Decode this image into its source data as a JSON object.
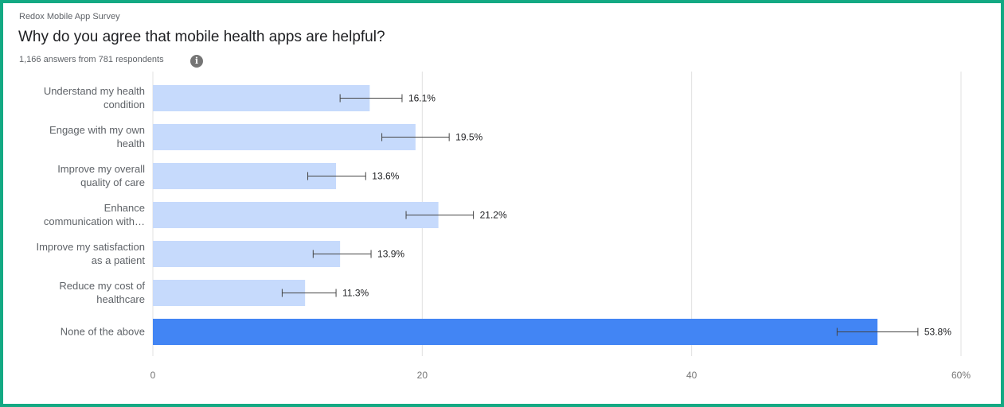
{
  "header": {
    "survey_name": "Redox Mobile App Survey",
    "question": "Why do you agree that mobile health apps are helpful?",
    "response_count": "1,166 answers from 781 respondents",
    "info_icon": "info-icon"
  },
  "colors": {
    "frame": "#13a983",
    "bar": "#c6dafc",
    "bar_highlight": "#4285f4",
    "error_bar": "#444444",
    "grid": "#e0e0e0"
  },
  "chart_data": {
    "type": "bar",
    "orientation": "horizontal",
    "categories": [
      [
        "Understand my health",
        "condition"
      ],
      [
        "Engage with my own",
        "health"
      ],
      [
        "Improve my overall",
        "quality of care"
      ],
      [
        "Enhance",
        "communication with…"
      ],
      [
        "Improve my satisfaction",
        "as a patient"
      ],
      [
        "Reduce my cost of",
        "healthcare"
      ],
      [
        "None of the above"
      ]
    ],
    "values": [
      16.1,
      19.5,
      13.6,
      21.2,
      13.9,
      11.3,
      53.8
    ],
    "value_labels": [
      "16.1%",
      "19.5%",
      "13.6%",
      "21.2%",
      "13.9%",
      "11.3%",
      "53.8%"
    ],
    "error_bars": [
      [
        13.9,
        18.5
      ],
      [
        17.0,
        22.0
      ],
      [
        11.5,
        15.8
      ],
      [
        18.8,
        23.8
      ],
      [
        11.9,
        16.2
      ],
      [
        9.6,
        13.6
      ],
      [
        50.8,
        56.8
      ]
    ],
    "highlighted": [
      6
    ],
    "xlim": [
      0,
      60
    ],
    "xticks": [
      0,
      20,
      40,
      60
    ],
    "xtick_labels": [
      "0",
      "20",
      "40",
      "60%"
    ],
    "grid": true
  }
}
